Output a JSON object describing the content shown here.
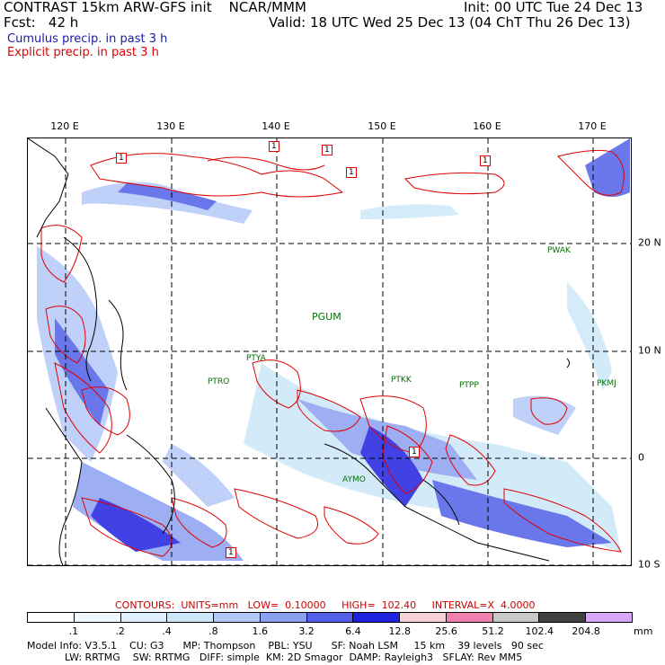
{
  "header": {
    "title": "CONTRAST 15km ARW-GFS init    NCAR/MMM",
    "init": "Init: 00 UTC Tue 24 Dec 13",
    "fcst": "Fcst:   42 h",
    "valid": "Valid: 18 UTC Wed 25 Dec 13 (04 ChT Thu 26 Dec 13)"
  },
  "legend": {
    "cumulus": "Cumulus precip. in past 3 h",
    "explicit": "Explicit precip. in past 3 h",
    "cumulus_color": "#1a1aa8",
    "explicit_color": "#e00000"
  },
  "map": {
    "lon_labels": [
      "120 E",
      "130 E",
      "140 E",
      "150 E",
      "160 E",
      "170 E"
    ],
    "lat_labels": [
      "20 N",
      "10 N",
      "0",
      "10 S"
    ],
    "stations": [
      {
        "name": "PWAK"
      },
      {
        "name": "PGUM"
      },
      {
        "name": "PTYA"
      },
      {
        "name": "PTRO"
      },
      {
        "name": "PTKK"
      },
      {
        "name": "PTPP"
      },
      {
        "name": "PKMJ"
      },
      {
        "name": "AYMO"
      }
    ],
    "box_labels": [
      "1",
      "1",
      "1",
      "1",
      "1",
      "1",
      "1"
    ]
  },
  "contours_line": "CONTOURS:  UNITS=mm   LOW=  0.10000     HIGH=  102.40     INTERVAL=X  4.0000",
  "colorbar": {
    "labels": [
      ".1",
      ".2",
      ".4",
      ".8",
      "1.6",
      "3.2",
      "6.4",
      "12.8",
      "25.6",
      "51.2",
      "102.4",
      "204.8"
    ],
    "unit": "mm",
    "colors": [
      "#ffffff",
      "#f0f8ff",
      "#e0f0ff",
      "#cce8f8",
      "#b4c8f8",
      "#8ca0f0",
      "#5060e8",
      "#2020e0",
      "#f8d0d8",
      "#f080b0",
      "#c8c8c8",
      "#404040",
      "#d8a8f8"
    ]
  },
  "model_info": {
    "line1": "Model Info: V3.5.1    CU: G3      MP: Thompson    PBL: YSU      SF: Noah LSM     15 km    39 levels   90 sec",
    "line2": "LW: RRTMG    SW: RRTMG   DIFF: simple  KM: 2D Smagor  DAMP: Rayleigh3   SFLAY: Rev MM5"
  }
}
